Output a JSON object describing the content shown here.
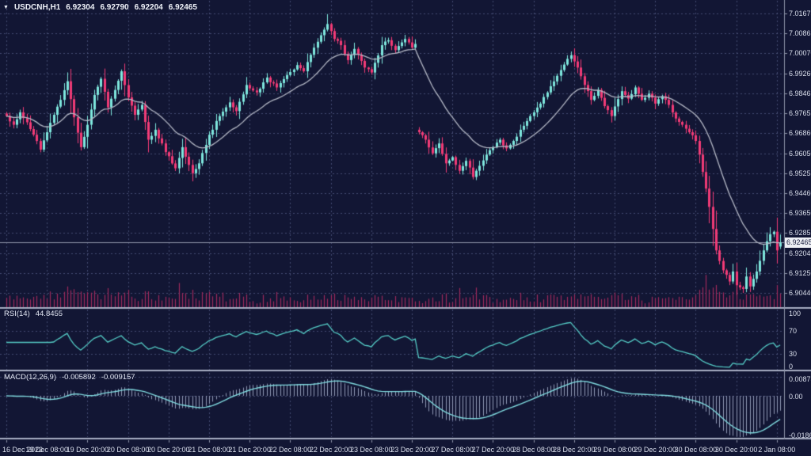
{
  "window": {
    "marker_icon": "▼",
    "symbol": "USDCNH,H1",
    "ohlc": {
      "open": "6.92304",
      "high": "6.92790",
      "low": "6.92204",
      "close": "6.92465"
    }
  },
  "price_axis": {
    "labels": [
      "7.01675",
      "7.00865",
      "7.00070",
      "6.99260",
      "6.98465",
      "6.97655",
      "6.96860",
      "6.96050",
      "6.95255",
      "6.94460",
      "6.93650",
      "6.92855",
      "6.92045",
      "6.91250",
      "6.90440"
    ],
    "current_price": "6.92465"
  },
  "time_axis": {
    "labels": [
      "16 Dec 2022",
      "19 Dec 08:00",
      "19 Dec 20:00",
      "20 Dec 08:00",
      "20 Dec 20:00",
      "21 Dec 08:00",
      "21 Dec 20:00",
      "22 Dec 08:00",
      "22 Dec 20:00",
      "23 Dec 08:00",
      "23 Dec 20:00",
      "27 Dec 08:00",
      "27 Dec 20:00",
      "28 Dec 08:00",
      "28 Dec 20:00",
      "29 Dec 08:00",
      "29 Dec 20:00",
      "30 Dec 08:00",
      "30 Dec 20:00",
      "2 Jan 08:00"
    ]
  },
  "indicators": {
    "rsi": {
      "label": "RSI(14)",
      "value": "44.8455",
      "levels": [
        "100",
        "70",
        "30",
        "0"
      ]
    },
    "macd": {
      "label": "MACD(12,26,9)",
      "value_main": "-0.005892",
      "value_signal": "-0.009157",
      "scale": [
        "0.008735",
        "0.00",
        "-0.018662"
      ]
    }
  },
  "colors": {
    "background": "#121634",
    "grid": "#565d87",
    "candle_up": "#7ee7dd",
    "candle_down": "#f23b76",
    "moving_average": "#b5b9c6",
    "volume": "#9e2a5c",
    "rsi_line": "#55cdc7",
    "macd_signal_line": "#7fd9de",
    "macd_histogram": "#9099b4",
    "separator": "#a8aec3",
    "axis_text": "#d9deeb",
    "current_price_line": "#8f95aa",
    "price_box_bg": "#edeff4",
    "price_box_text": "#161a3c"
  },
  "chart_data": {
    "type": "candlestick",
    "symbol": "USDCNH",
    "timeframe": "H1",
    "title": "USDCNH,H1 6.92304 6.92790 6.92204 6.92465",
    "legend_position": "none",
    "grid": true,
    "price_range": {
      "max": 7.01675,
      "min": 6.9044
    },
    "rsi_range": [
      0,
      100
    ],
    "macd_range": [
      -0.018662,
      0.008735
    ],
    "candle_count": 230,
    "last_candle": {
      "open": 6.92304,
      "high": 6.9279,
      "low": 6.92204,
      "close": 6.92465
    },
    "extremes": {
      "highest_high": 7.0165,
      "highest_index": 95,
      "lowest_low": 6.9044,
      "lowest_index": 218
    },
    "gap_after_index": 121,
    "gap_open": 6.97,
    "moving_average": {
      "visible": true,
      "period_estimate": 20
    },
    "rsi_period": 14,
    "rsi_last": 44.8455,
    "macd_params": [
      12,
      26,
      9
    ],
    "macd_last_main": -0.005892,
    "macd_last_signal": -0.009157,
    "close_anchors": [
      [
        0,
        6.9755
      ],
      [
        2,
        6.972
      ],
      [
        4,
        6.977
      ],
      [
        6,
        6.973
      ],
      [
        8,
        6.968
      ],
      [
        10,
        6.962
      ],
      [
        12,
        6.969
      ],
      [
        14,
        6.976
      ],
      [
        16,
        6.982
      ],
      [
        18,
        6.9895
      ],
      [
        20,
        6.975
      ],
      [
        22,
        6.963
      ],
      [
        24,
        6.972
      ],
      [
        26,
        6.984
      ],
      [
        28,
        6.9905
      ],
      [
        30,
        6.979
      ],
      [
        32,
        6.986
      ],
      [
        34,
        6.9935
      ],
      [
        36,
        6.983
      ],
      [
        38,
        6.976
      ],
      [
        40,
        6.98
      ],
      [
        42,
        6.966
      ],
      [
        44,
        6.97
      ],
      [
        47,
        6.961
      ],
      [
        50,
        6.9545
      ],
      [
        52,
        6.963
      ],
      [
        55,
        6.9525
      ],
      [
        57,
        6.9565
      ],
      [
        60,
        6.968
      ],
      [
        63,
        6.9755
      ],
      [
        66,
        6.981
      ],
      [
        68,
        6.9775
      ],
      [
        71,
        6.988
      ],
      [
        74,
        6.985
      ],
      [
        77,
        6.991
      ],
      [
        80,
        6.987
      ],
      [
        83,
        6.992
      ],
      [
        86,
        6.996
      ],
      [
        88,
        6.9935
      ],
      [
        91,
        7.003
      ],
      [
        93,
        7.008
      ],
      [
        95,
        7.0125
      ],
      [
        97,
        7.0065
      ],
      [
        99,
        7.004
      ],
      [
        101,
        6.998
      ],
      [
        103,
        7.0025
      ],
      [
        106,
        6.995
      ],
      [
        108,
        6.993
      ],
      [
        111,
        7.004
      ],
      [
        113,
        7.006
      ],
      [
        115,
        7.002
      ],
      [
        118,
        7.0065
      ],
      [
        120,
        7.003
      ],
      [
        121,
        7.0045
      ],
      [
        122,
        6.969
      ],
      [
        124,
        6.966
      ],
      [
        126,
        6.9605
      ],
      [
        128,
        6.9645
      ],
      [
        130,
        6.9565
      ],
      [
        132,
        6.959
      ],
      [
        134,
        6.9535
      ],
      [
        136,
        6.9575
      ],
      [
        138,
        6.951
      ],
      [
        140,
        6.9555
      ],
      [
        142,
        6.96
      ],
      [
        144,
        6.963
      ],
      [
        146,
        6.966
      ],
      [
        148,
        6.9625
      ],
      [
        150,
        6.9655
      ],
      [
        152,
        6.97
      ],
      [
        155,
        6.9755
      ],
      [
        158,
        6.9805
      ],
      [
        161,
        6.9875
      ],
      [
        164,
        6.994
      ],
      [
        167,
        7.0
      ],
      [
        169,
        6.995
      ],
      [
        171,
        6.988
      ],
      [
        173,
        6.982
      ],
      [
        175,
        6.986
      ],
      [
        177,
        6.9795
      ],
      [
        179,
        6.9755
      ],
      [
        182,
        6.9855
      ],
      [
        184,
        6.9825
      ],
      [
        186,
        6.987
      ],
      [
        188,
        6.982
      ],
      [
        190,
        6.9845
      ],
      [
        192,
        6.9805
      ],
      [
        194,
        6.9835
      ],
      [
        196,
        6.98
      ],
      [
        198,
        6.9745
      ],
      [
        200,
        6.972
      ],
      [
        202,
        6.969
      ],
      [
        204,
        6.9655
      ],
      [
        205,
        6.96
      ],
      [
        206,
        6.953
      ],
      [
        208,
        6.939
      ],
      [
        210,
        6.9215
      ],
      [
        212,
        6.9135
      ],
      [
        214,
        6.909
      ],
      [
        215,
        6.913
      ],
      [
        216,
        6.9075
      ],
      [
        218,
        6.906
      ],
      [
        219,
        6.911
      ],
      [
        220,
        6.907
      ],
      [
        222,
        6.913
      ],
      [
        224,
        6.9215
      ],
      [
        226,
        6.928
      ],
      [
        227,
        6.929
      ],
      [
        228,
        6.9215
      ],
      [
        229,
        6.92465
      ]
    ]
  }
}
